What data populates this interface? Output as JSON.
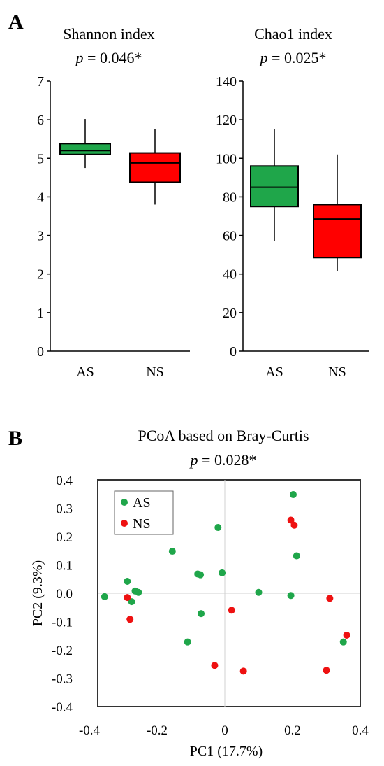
{
  "panels": {
    "a_label": "A",
    "b_label": "B"
  },
  "chart_data": [
    {
      "type": "box",
      "title": "Shannon index",
      "p_symbol": "p",
      "p_text": " = 0.046*",
      "categories": [
        "AS",
        "NS"
      ],
      "yticks": [
        "0",
        "1",
        "2",
        "3",
        "4",
        "5",
        "6",
        "7"
      ],
      "ylim": [
        0,
        7
      ],
      "boxes": [
        {
          "name": "AS",
          "min": 4.75,
          "q1": 5.1,
          "median": 5.2,
          "q3": 5.38,
          "max": 6.02,
          "color": "#1fa64a"
        },
        {
          "name": "NS",
          "min": 3.8,
          "q1": 4.38,
          "median": 4.88,
          "q3": 5.14,
          "max": 5.76,
          "color": "#ff0000"
        }
      ]
    },
    {
      "type": "box",
      "title": "Chao1 index",
      "p_symbol": "p",
      "p_text": " = 0.025*",
      "categories": [
        "AS",
        "NS"
      ],
      "yticks": [
        "0",
        "20",
        "40",
        "60",
        "80",
        "100",
        "120",
        "140"
      ],
      "ylim": [
        0,
        140
      ],
      "boxes": [
        {
          "name": "AS",
          "min": 57,
          "q1": 75,
          "median": 85,
          "q3": 96,
          "max": 115,
          "color": "#1fa64a"
        },
        {
          "name": "NS",
          "min": 41.5,
          "q1": 48.5,
          "median": 68.5,
          "q3": 76,
          "max": 102,
          "color": "#ff0000"
        }
      ]
    },
    {
      "type": "scatter",
      "title": "PCoA based on Bray-Curtis",
      "p_symbol": "p",
      "p_text": " = 0.028*",
      "xlabel": "PC1 (17.7%)",
      "ylabel": "PC2 (9.3%)",
      "xlim": [
        -0.4,
        0.4
      ],
      "ylim": [
        -0.4,
        0.4
      ],
      "xticks": [
        "-0.4",
        "-0.2",
        "0",
        "0.2",
        "0.4"
      ],
      "yticks": [
        "0.4",
        "0.3",
        "0.2",
        "0.1",
        "0.0",
        "-0.1",
        "-0.2",
        "-0.3",
        "-0.4"
      ],
      "legend_position": "top-left",
      "series": [
        {
          "name": "AS",
          "color": "#1fa64a",
          "points": [
            [
              -0.355,
              -0.012
            ],
            [
              -0.288,
              0.042
            ],
            [
              -0.275,
              -0.03
            ],
            [
              -0.265,
              0.008
            ],
            [
              -0.255,
              0.003
            ],
            [
              -0.155,
              0.148
            ],
            [
              -0.11,
              -0.172
            ],
            [
              -0.08,
              0.068
            ],
            [
              -0.072,
              0.065
            ],
            [
              -0.07,
              -0.072
            ],
            [
              -0.02,
              0.232
            ],
            [
              -0.008,
              0.072
            ],
            [
              0.1,
              0.003
            ],
            [
              0.195,
              -0.008
            ],
            [
              0.202,
              0.348
            ],
            [
              0.212,
              0.132
            ],
            [
              0.35,
              -0.172
            ]
          ]
        },
        {
          "name": "NS",
          "color": "#ee1111",
          "points": [
            [
              -0.288,
              -0.015
            ],
            [
              -0.28,
              -0.092
            ],
            [
              -0.03,
              -0.255
            ],
            [
              0.02,
              -0.06
            ],
            [
              0.055,
              -0.275
            ],
            [
              0.195,
              0.258
            ],
            [
              0.205,
              0.24
            ],
            [
              0.3,
              -0.272
            ],
            [
              0.31,
              -0.018
            ],
            [
              0.36,
              -0.148
            ]
          ]
        }
      ]
    }
  ]
}
